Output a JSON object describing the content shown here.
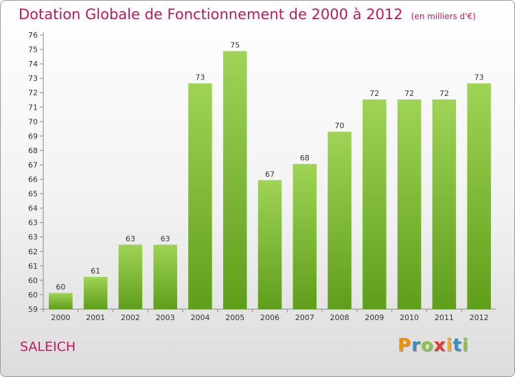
{
  "header": {
    "title": "Dotation Globale de Fonctionnement de 2000 à 2012",
    "unit": "(en milliers d'€)"
  },
  "footer": {
    "city": "SALEICH",
    "logo": [
      "P",
      "r",
      "o",
      "x",
      "i",
      "t",
      "i"
    ]
  },
  "colors": {
    "title": "#c2185b",
    "bar_top": "#9fd455",
    "bar_bottom": "#5f9e1a",
    "logo_letters": [
      "#f39200",
      "#3c8dbc",
      "#8bc34a",
      "#e53935",
      "#f9a825",
      "#3c8dbc",
      "#8bc34a"
    ]
  },
  "chart_data": {
    "type": "bar",
    "title": "Dotation Globale de Fonctionnement de 2000 à 2012",
    "subtitle": "(en milliers d'€)",
    "xlabel": "",
    "ylabel": "",
    "categories": [
      "2000",
      "2001",
      "2002",
      "2003",
      "2004",
      "2005",
      "2006",
      "2007",
      "2008",
      "2009",
      "2010",
      "2011",
      "2012"
    ],
    "values": [
      60,
      61,
      63,
      63,
      73,
      75,
      67,
      68,
      70,
      72,
      72,
      72,
      73
    ],
    "labels": [
      "60",
      "61",
      "63",
      "63",
      "73",
      "75",
      "67",
      "68",
      "70",
      "72",
      "72",
      "72",
      "73"
    ],
    "ylim": [
      59,
      76
    ],
    "yticks": [
      "59",
      "60",
      "60",
      "61",
      "62",
      "63",
      "63",
      "64",
      "65",
      "66",
      "67",
      "68",
      "69",
      "70",
      "71",
      "72",
      "73",
      "74",
      "75",
      "76"
    ],
    "grid": false,
    "legend": "none"
  }
}
